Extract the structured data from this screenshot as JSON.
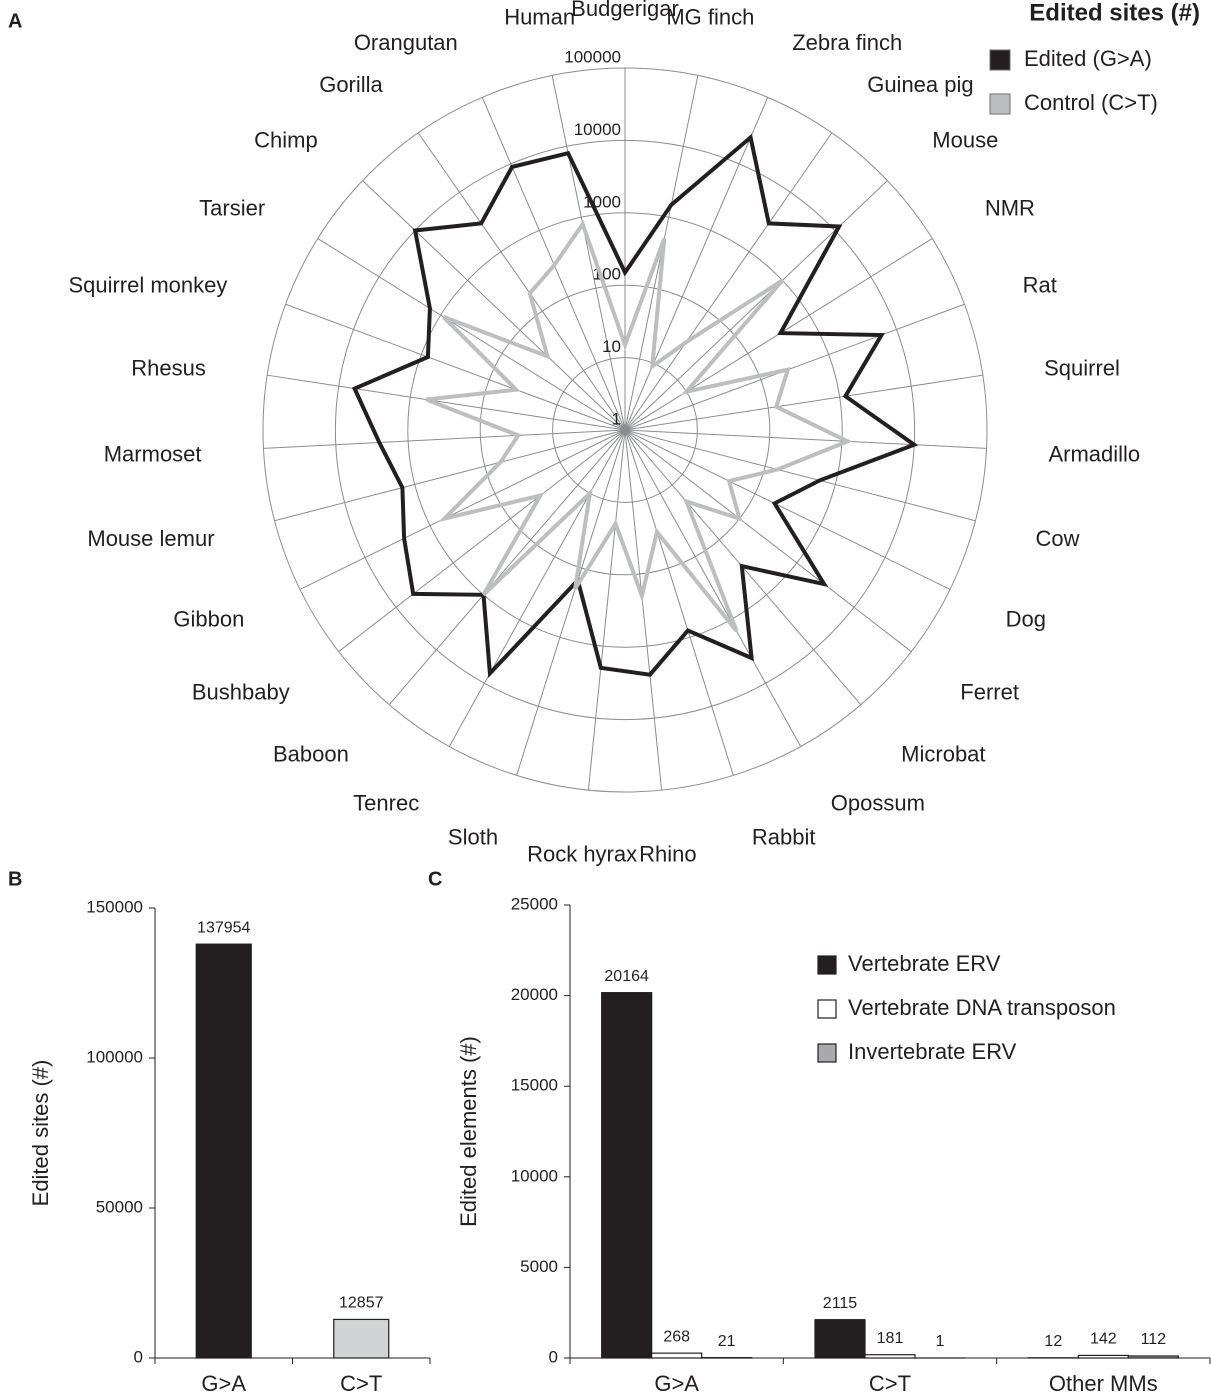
{
  "chart_data": [
    {
      "type": "radar",
      "panel": "A",
      "legend_title": "Edited sites (#)",
      "categories": [
        "Budgerigar",
        "MG finch",
        "Zebra finch",
        "Guinea pig",
        "Mouse",
        "NMR",
        "Rat",
        "Squirrel",
        "Armadillo",
        "Cow",
        "Dog",
        "Ferret",
        "Microbat",
        "Opossum",
        "Rabbit",
        "Rhino",
        "Rock hyrax",
        "Sloth",
        "Tenrec",
        "Baboon",
        "Bushbaby",
        "Gibbon",
        "Mouse lemur",
        "Marmoset",
        "Rhesus",
        "Squirrel monkey",
        "Tarsier",
        "Chimp",
        "Gorilla",
        "Orangutan",
        "Human"
      ],
      "series": [
        {
          "name": "Edited (G>A)",
          "color": "#231f20",
          "values": [
            150,
            1500,
            25000,
            3000,
            12000,
            340,
            6000,
            1200,
            10000,
            600,
            200,
            3000,
            300,
            4000,
            800,
            2500,
            2000,
            150,
            7000,
            1000,
            5000,
            2500,
            1500,
            2500,
            6000,
            800,
            1500,
            10000,
            3000,
            9000,
            8000
          ]
        },
        {
          "name": "Control (C>T)",
          "color": "#bcbec0",
          "values": [
            15,
            500,
            9,
            30,
            1000,
            10,
            250,
            130,
            1200,
            150,
            40,
            100,
            20,
            1500,
            30,
            200,
            20,
            200,
            10,
            1000,
            30,
            600,
            60,
            30,
            600,
            40,
            900,
            30,
            200,
            300,
            800
          ]
        }
      ],
      "ylim": [
        1,
        100000
      ],
      "yticks": [
        1,
        10,
        100,
        1000,
        10000,
        100000
      ],
      "log": true,
      "grid": true,
      "legend": "top-right"
    },
    {
      "type": "bar",
      "panel": "B",
      "y_label": "Edited sites (#)",
      "categories": [
        "G>A",
        "C>T"
      ],
      "values": [
        137954,
        12857
      ],
      "colors": [
        "#231f20",
        "#d1d3d4"
      ],
      "ylim": [
        0,
        150000
      ],
      "yticks": [
        0,
        50000,
        100000,
        150000
      ]
    },
    {
      "type": "grouped_bar",
      "panel": "C",
      "y_label": "Edited elements (#)",
      "categories": [
        "G>A",
        "C>T",
        "Other MMs"
      ],
      "series": [
        {
          "name": "Vertebrate ERV",
          "color": "#231f20",
          "values": [
            20164,
            2115,
            12
          ]
        },
        {
          "name": "Vertebrate DNA transposon",
          "color": "#ffffff",
          "values": [
            268,
            181,
            142
          ]
        },
        {
          "name": "Invertebrate ERV",
          "color": "#a7a9ac",
          "values": [
            21,
            1,
            112
          ]
        }
      ],
      "ylim": [
        0,
        25000
      ],
      "yticks": [
        0,
        5000,
        10000,
        15000,
        20000,
        25000
      ],
      "legend": "upper-right"
    }
  ]
}
